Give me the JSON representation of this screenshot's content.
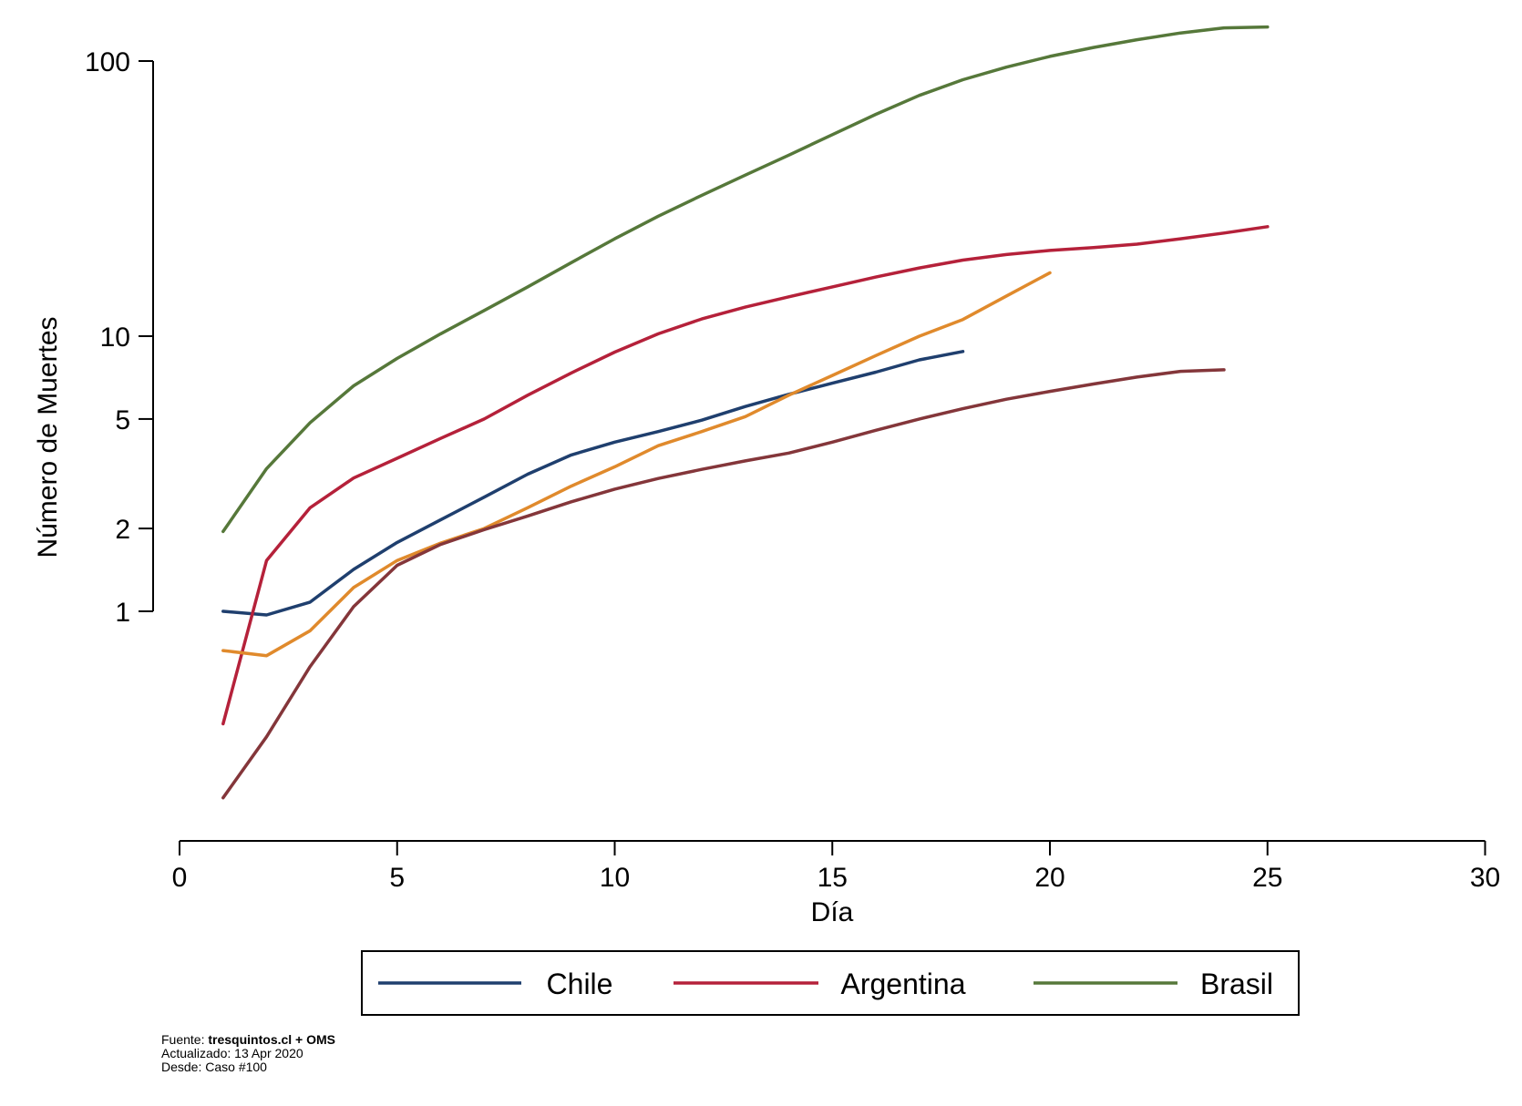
{
  "chart_data": {
    "type": "line",
    "title": "",
    "xlabel": "Día",
    "ylabel": "Número de Muertes",
    "y_scale": "log",
    "xlim": [
      0,
      30
    ],
    "ylim": [
      0.28,
      110
    ],
    "x_ticks": [
      0,
      5,
      10,
      15,
      20,
      25,
      30
    ],
    "y_ticks": [
      1,
      2,
      5,
      10,
      100
    ],
    "grid": false,
    "legend_position": "bottom",
    "series": [
      {
        "name": "Chile",
        "color": "#1f3f6e",
        "x": [
          1,
          2,
          3,
          4,
          5,
          6,
          7,
          8,
          9,
          10,
          11,
          12,
          13,
          14,
          15,
          16,
          17,
          18
        ],
        "y": [
          1.0,
          0.97,
          1.08,
          1.42,
          1.78,
          2.15,
          2.6,
          3.15,
          3.7,
          4.12,
          4.5,
          4.95,
          5.55,
          6.15,
          6.75,
          7.4,
          8.2,
          8.8
        ]
      },
      {
        "name": "Argentina",
        "color": "#b5213a",
        "x": [
          1,
          2,
          3,
          4,
          5,
          6,
          7,
          8,
          9,
          10,
          11,
          12,
          13,
          14,
          15,
          16,
          17,
          18,
          19,
          20,
          21,
          22,
          23,
          24,
          25
        ],
        "y": [
          0.39,
          1.53,
          2.38,
          3.05,
          3.6,
          4.25,
          5.0,
          6.1,
          7.35,
          8.75,
          10.2,
          11.55,
          12.75,
          13.9,
          15.1,
          16.4,
          17.7,
          18.9,
          19.8,
          20.5,
          21.0,
          21.6,
          22.6,
          23.7,
          25.0
        ]
      },
      {
        "name": "Brasil",
        "color": "#56783a",
        "x": [
          1,
          2,
          3,
          4,
          5,
          6,
          7,
          8,
          9,
          10,
          11,
          12,
          13,
          14,
          15,
          16,
          17,
          18,
          19,
          20,
          21,
          22,
          23,
          24,
          25
        ],
        "y": [
          1.95,
          3.3,
          4.85,
          6.6,
          8.3,
          10.2,
          12.4,
          15.1,
          18.5,
          22.6,
          27.3,
          32.5,
          38.5,
          45.5,
          54.0,
          64.0,
          75.0,
          85.5,
          95.0,
          104.0,
          112.0,
          119.5,
          126.5,
          132.0,
          133.0
        ]
      },
      {
        "name": "",
        "color": "#e08a2c",
        "x": [
          1,
          2,
          3,
          4,
          5,
          6,
          7,
          8,
          9,
          10,
          11,
          12,
          13,
          14,
          15,
          16,
          17,
          18,
          19,
          20
        ],
        "y": [
          0.72,
          0.69,
          0.85,
          1.22,
          1.53,
          1.77,
          2.0,
          2.38,
          2.85,
          3.35,
          4.0,
          4.5,
          5.1,
          6.1,
          7.2,
          8.5,
          10.0,
          11.5,
          14.0,
          17.0
        ]
      },
      {
        "name": "",
        "color": "#84363a",
        "x": [
          1,
          2,
          3,
          4,
          5,
          6,
          7,
          8,
          9,
          10,
          11,
          12,
          13,
          14,
          15,
          16,
          17,
          18,
          19,
          20,
          21,
          22,
          23,
          24
        ],
        "y": [
          0.21,
          0.35,
          0.63,
          1.04,
          1.47,
          1.75,
          1.98,
          2.22,
          2.5,
          2.78,
          3.04,
          3.28,
          3.52,
          3.76,
          4.12,
          4.55,
          5.0,
          5.45,
          5.9,
          6.3,
          6.7,
          7.1,
          7.45,
          7.55
        ]
      }
    ]
  },
  "legend": {
    "items": [
      {
        "label": "Chile",
        "color": "#1f3f6e"
      },
      {
        "label": "Argentina",
        "color": "#b5213a"
      },
      {
        "label": "Brasil",
        "color": "#56783a"
      }
    ]
  },
  "footnote": {
    "source_prefix": "Fuente: ",
    "source_bold": "tresquintos.cl + OMS",
    "updated": "Actualizado: 13 Apr 2020",
    "since": "Desde: Caso #100"
  }
}
